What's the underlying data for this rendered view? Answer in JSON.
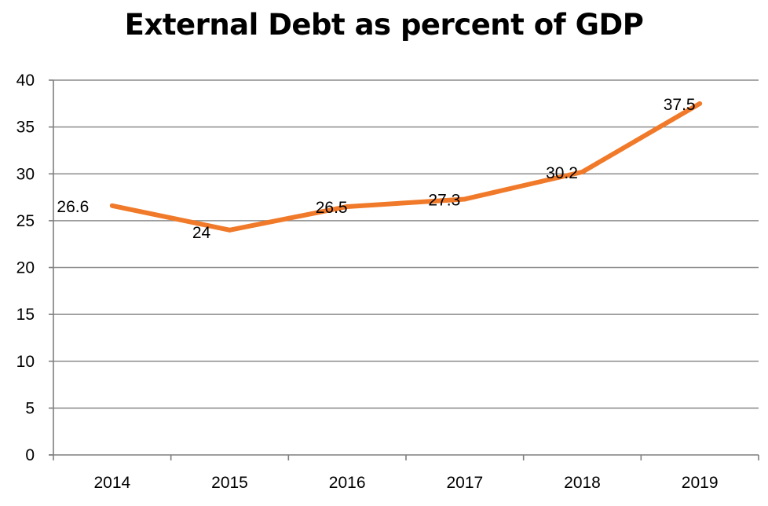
{
  "chart_data": {
    "type": "line",
    "title": "External Debt as percent of GDP",
    "xlabel": "",
    "ylabel": "",
    "categories": [
      "2014",
      "2015",
      "2016",
      "2017",
      "2018",
      "2019"
    ],
    "series": [
      {
        "values": [
          26.6,
          24,
          26.5,
          27.3,
          30.2,
          37.5
        ],
        "data_labels": [
          "26.6",
          "24",
          "26.5",
          "27.3",
          "30.2",
          "37.5"
        ],
        "color": "#F07A2A"
      }
    ],
    "ylim": [
      0,
      40
    ],
    "yticks": [
      0,
      5,
      10,
      15,
      20,
      25,
      30,
      35,
      40
    ],
    "ytick_labels": [
      "0",
      "5",
      "10",
      "15",
      "20",
      "25",
      "30",
      "35",
      "40"
    ],
    "grid": true,
    "legend": "none",
    "gridline_color": "#8C8C8C",
    "axis_color": "#7F7F7F"
  }
}
